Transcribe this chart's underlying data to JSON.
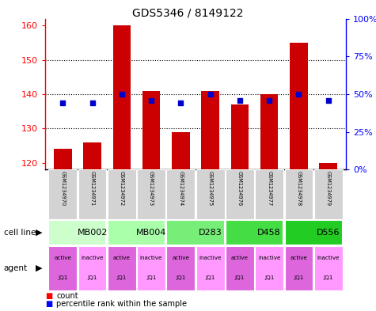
{
  "title": "GDS5346 / 8149122",
  "samples": [
    "GSM1234970",
    "GSM1234971",
    "GSM1234972",
    "GSM1234973",
    "GSM1234974",
    "GSM1234975",
    "GSM1234976",
    "GSM1234977",
    "GSM1234978",
    "GSM1234979"
  ],
  "counts": [
    124,
    126,
    160,
    141,
    129,
    141,
    137,
    140,
    155,
    120
  ],
  "percentile_ranks": [
    44,
    44,
    50,
    46,
    44,
    50,
    46,
    46,
    50,
    46
  ],
  "ylim_left": [
    118,
    162
  ],
  "ylim_right": [
    0,
    100
  ],
  "yticks_left": [
    120,
    130,
    140,
    150,
    160
  ],
  "yticks_right": [
    0,
    25,
    50,
    75,
    100
  ],
  "ytick_labels_right": [
    "0%",
    "25%",
    "50%",
    "75%",
    "100%"
  ],
  "cell_lines": [
    {
      "name": "MB002",
      "color": "#ccffcc",
      "span": [
        0,
        2
      ]
    },
    {
      "name": "MB004",
      "color": "#aaffaa",
      "span": [
        2,
        4
      ]
    },
    {
      "name": "D283",
      "color": "#77ee77",
      "span": [
        4,
        6
      ]
    },
    {
      "name": "D458",
      "color": "#44dd44",
      "span": [
        6,
        8
      ]
    },
    {
      "name": "D556",
      "color": "#22cc22",
      "span": [
        8,
        10
      ]
    }
  ],
  "agent_labels": [
    "active",
    "inactive",
    "active",
    "inactive",
    "active",
    "inactive",
    "active",
    "inactive",
    "active",
    "inactive"
  ],
  "agent_color_active": "#dd66dd",
  "agent_color_inactive": "#ff99ff",
  "bar_color": "#cc0000",
  "dot_color": "#0000cc",
  "grid_dotted_at": [
    130,
    140,
    150
  ],
  "bar_width": 0.6,
  "figsize": [
    4.75,
    3.93
  ],
  "dpi": 100
}
